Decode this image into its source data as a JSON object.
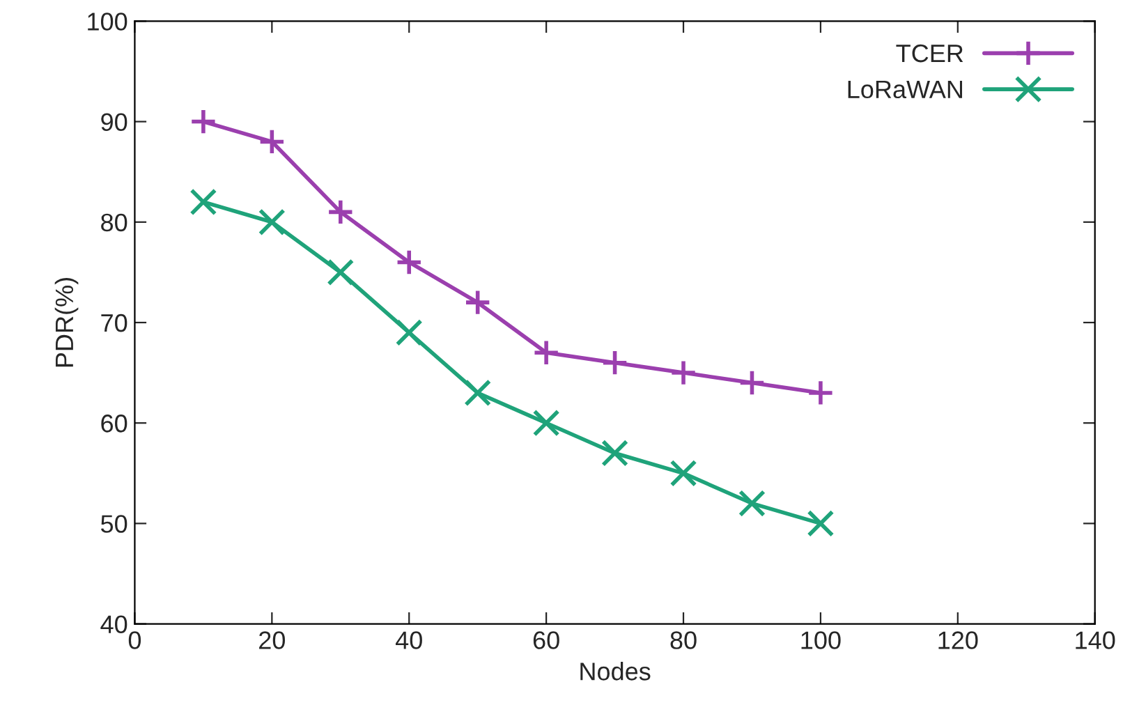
{
  "chart_data": {
    "type": "line",
    "xlabel": "Nodes",
    "ylabel": "PDR(%)",
    "x": [
      10,
      20,
      30,
      40,
      50,
      60,
      70,
      80,
      90,
      100
    ],
    "series": [
      {
        "name": "TCER",
        "color": "#9b3fae",
        "marker": "plus",
        "values": [
          90,
          88,
          81,
          76,
          72,
          67,
          66,
          65,
          64,
          63
        ]
      },
      {
        "name": "LoRaWAN",
        "color": "#1fa37a",
        "marker": "cross",
        "values": [
          82,
          80,
          75,
          69,
          63,
          60,
          57,
          55,
          52,
          50
        ]
      }
    ],
    "xlim": [
      0,
      140
    ],
    "xticks": [
      0,
      20,
      40,
      60,
      80,
      100,
      120,
      140
    ],
    "ylim": [
      40,
      100
    ],
    "yticks": [
      40,
      50,
      60,
      70,
      80,
      90,
      100
    ],
    "grid": false,
    "legend": "top right",
    "line_style": "solid"
  }
}
